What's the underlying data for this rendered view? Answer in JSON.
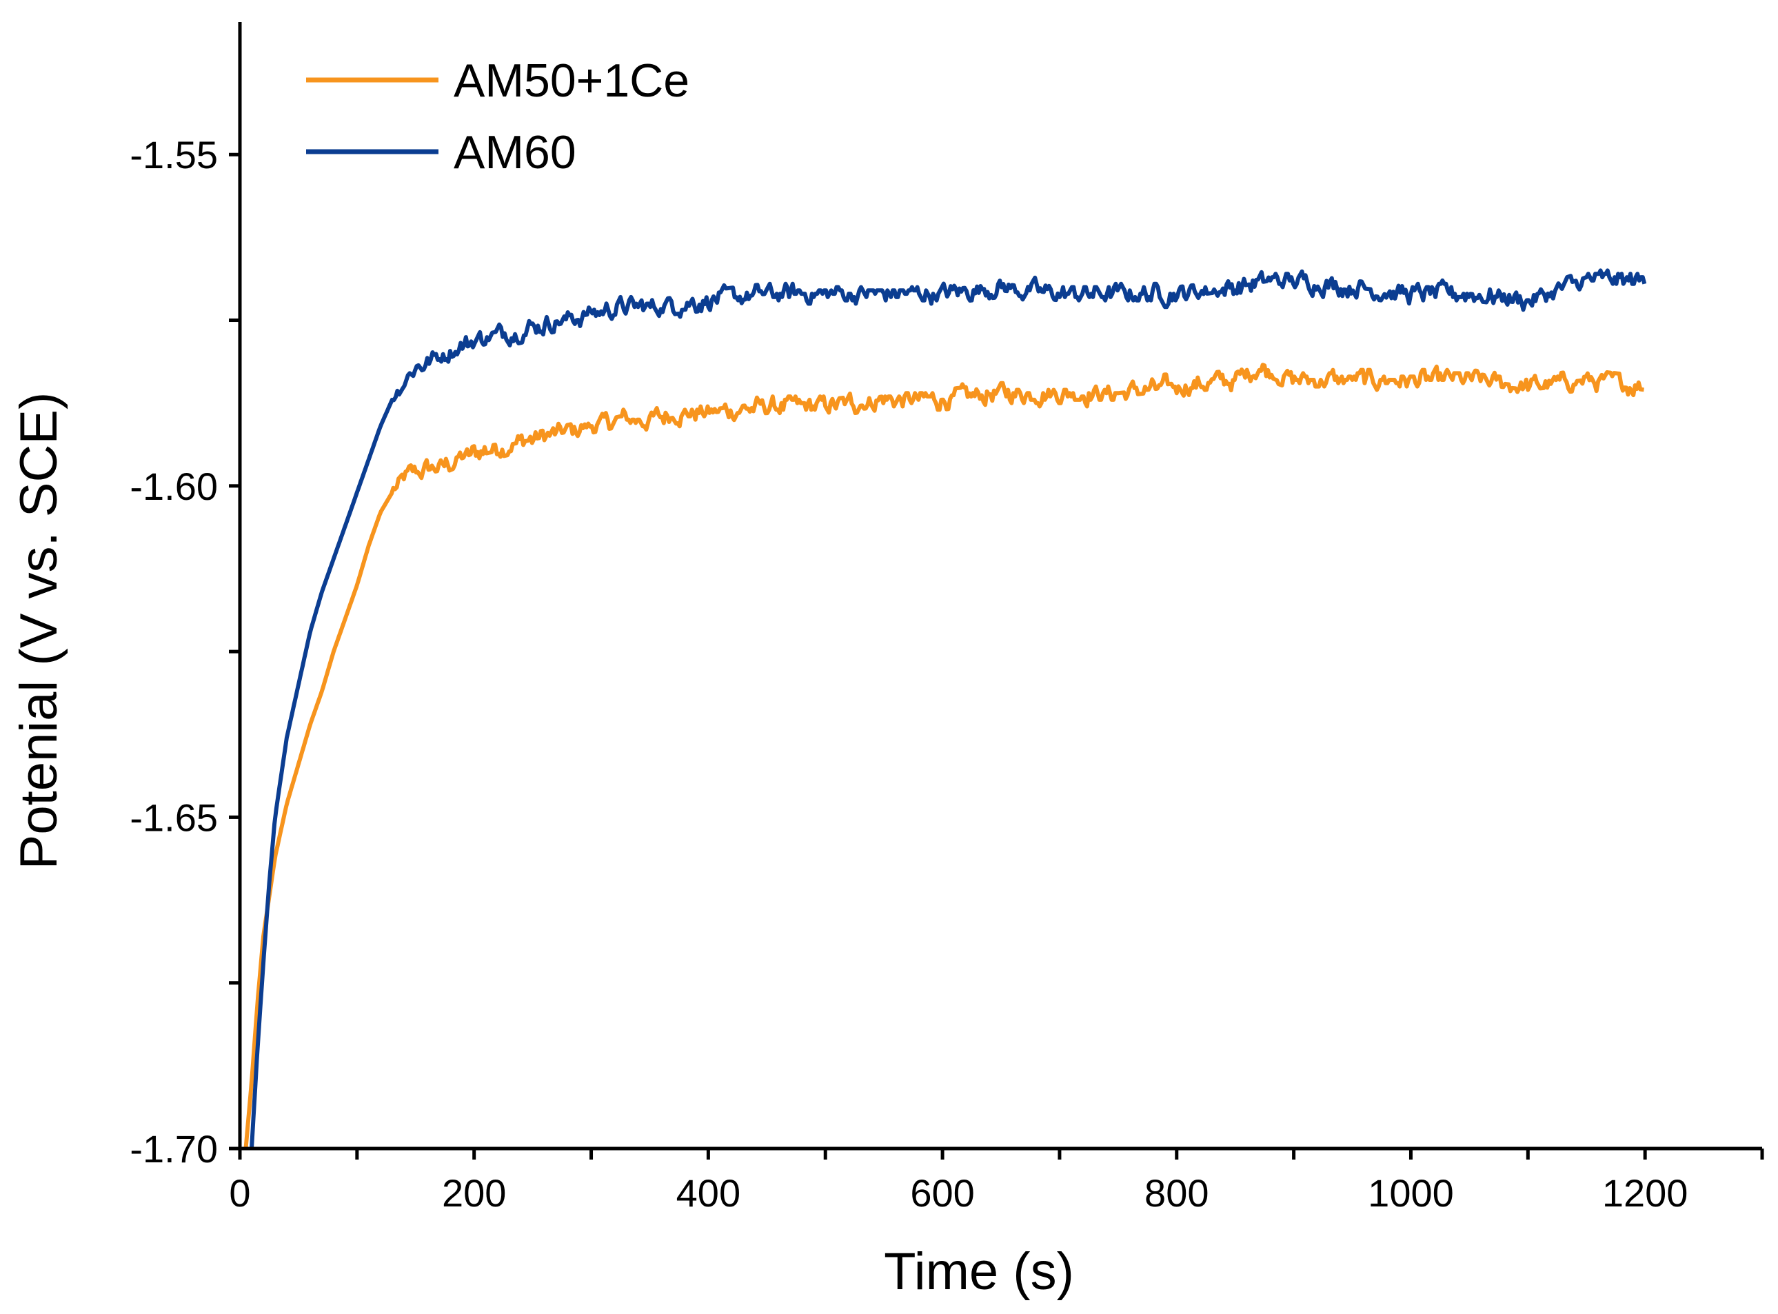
{
  "chart_data": {
    "type": "line",
    "title": "",
    "xlabel": "Time (s)",
    "ylabel": "Potenial (V vs. SCE)",
    "xlim": [
      0,
      1300
    ],
    "ylim": [
      -1.7,
      -1.53
    ],
    "xticks": [
      0,
      200,
      400,
      600,
      800,
      1000,
      1200
    ],
    "xtick_labels": [
      "0",
      "200",
      "400",
      "600",
      "800",
      "1000",
      "1200"
    ],
    "yticks": [
      -1.7,
      -1.65,
      -1.6,
      -1.55
    ],
    "ytick_labels": [
      "-1.70",
      "-1.65",
      "-1.60",
      "-1.55"
    ],
    "legend_position": "top-left",
    "series": [
      {
        "name": "AM50+1Ce",
        "color": "#f7941d",
        "x": [
          5,
          10,
          15,
          20,
          30,
          40,
          50,
          60,
          70,
          80,
          90,
          100,
          110,
          120,
          130,
          140,
          150,
          175,
          200,
          225,
          250,
          275,
          300,
          325,
          350,
          375,
          400,
          450,
          500,
          550,
          600,
          650,
          700,
          750,
          800,
          850,
          870,
          900,
          950,
          1000,
          1050,
          1100,
          1150,
          1200
        ],
        "values": [
          -1.7,
          -1.69,
          -1.678,
          -1.668,
          -1.656,
          -1.648,
          -1.642,
          -1.636,
          -1.631,
          -1.625,
          -1.62,
          -1.615,
          -1.609,
          -1.604,
          -1.601,
          -1.599,
          -1.598,
          -1.597,
          -1.595,
          -1.594,
          -1.593,
          -1.592,
          -1.591,
          -1.59,
          -1.59,
          -1.589,
          -1.589,
          -1.588,
          -1.588,
          -1.587,
          -1.587,
          -1.586,
          -1.586,
          -1.586,
          -1.585,
          -1.584,
          -1.582,
          -1.584,
          -1.584,
          -1.584,
          -1.584,
          -1.585,
          -1.584,
          -1.585
        ]
      },
      {
        "name": "AM60",
        "color": "#0b3d91",
        "x": [
          10,
          15,
          20,
          25,
          30,
          40,
          50,
          60,
          70,
          80,
          90,
          100,
          110,
          120,
          130,
          140,
          150,
          175,
          200,
          225,
          250,
          275,
          300,
          325,
          350,
          400,
          450,
          500,
          550,
          600,
          650,
          700,
          750,
          800,
          850,
          880,
          900,
          950,
          1000,
          1050,
          1100,
          1150,
          1200
        ],
        "values": [
          -1.7,
          -1.685,
          -1.672,
          -1.66,
          -1.65,
          -1.638,
          -1.63,
          -1.622,
          -1.616,
          -1.611,
          -1.606,
          -1.601,
          -1.596,
          -1.591,
          -1.587,
          -1.584,
          -1.582,
          -1.58,
          -1.578,
          -1.577,
          -1.576,
          -1.575,
          -1.574,
          -1.573,
          -1.573,
          -1.572,
          -1.571,
          -1.571,
          -1.571,
          -1.571,
          -1.57,
          -1.571,
          -1.571,
          -1.571,
          -1.57,
          -1.569,
          -1.569,
          -1.57,
          -1.571,
          -1.571,
          -1.572,
          -1.569,
          -1.569
        ]
      }
    ]
  }
}
